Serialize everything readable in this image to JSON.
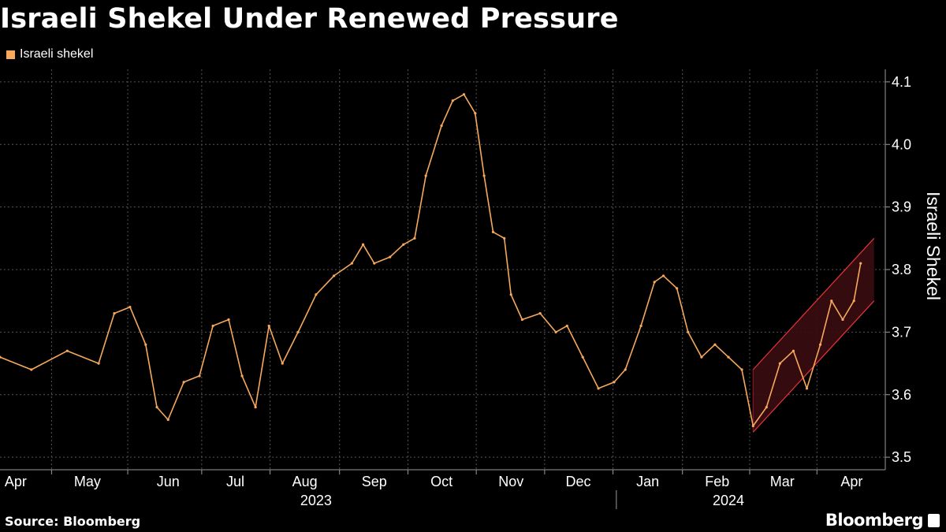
{
  "title": "Israeli Shekel Under Renewed Pressure",
  "legend": {
    "label": "Israeli shekel",
    "color": "#f6a85c"
  },
  "source": "Source: Bloomberg",
  "brand": "Bloomberg",
  "colors": {
    "series": "#f6a85c",
    "channel_line": "#e8333a",
    "channel_fill": "#3a0c0f",
    "grid": "#555555",
    "axis": "#9a9a9a",
    "background": "#000000"
  },
  "chart_data": {
    "type": "line",
    "title": "Israeli Shekel Under Renewed Pressure",
    "series": [
      {
        "name": "Israeli shekel",
        "points": [
          [
            "2023-04-01",
            3.66
          ],
          [
            "2023-04-15",
            3.64
          ],
          [
            "2023-05-01",
            3.67
          ],
          [
            "2023-05-15",
            3.65
          ],
          [
            "2023-05-22",
            3.73
          ],
          [
            "2023-05-29",
            3.74
          ],
          [
            "2023-06-05",
            3.68
          ],
          [
            "2023-06-10",
            3.58
          ],
          [
            "2023-06-15",
            3.56
          ],
          [
            "2023-06-22",
            3.62
          ],
          [
            "2023-06-29",
            3.63
          ],
          [
            "2023-07-05",
            3.71
          ],
          [
            "2023-07-12",
            3.72
          ],
          [
            "2023-07-18",
            3.63
          ],
          [
            "2023-07-24",
            3.58
          ],
          [
            "2023-07-30",
            3.71
          ],
          [
            "2023-08-05",
            3.65
          ],
          [
            "2023-08-12",
            3.7
          ],
          [
            "2023-08-20",
            3.76
          ],
          [
            "2023-08-28",
            3.79
          ],
          [
            "2023-09-05",
            3.81
          ],
          [
            "2023-09-10",
            3.84
          ],
          [
            "2023-09-15",
            3.81
          ],
          [
            "2023-09-22",
            3.82
          ],
          [
            "2023-09-28",
            3.84
          ],
          [
            "2023-10-03",
            3.85
          ],
          [
            "2023-10-08",
            3.95
          ],
          [
            "2023-10-15",
            4.03
          ],
          [
            "2023-10-20",
            4.07
          ],
          [
            "2023-10-25",
            4.08
          ],
          [
            "2023-10-30",
            4.05
          ],
          [
            "2023-11-03",
            3.95
          ],
          [
            "2023-11-07",
            3.86
          ],
          [
            "2023-11-12",
            3.85
          ],
          [
            "2023-11-15",
            3.76
          ],
          [
            "2023-11-20",
            3.72
          ],
          [
            "2023-11-28",
            3.73
          ],
          [
            "2023-12-05",
            3.7
          ],
          [
            "2023-12-10",
            3.71
          ],
          [
            "2023-12-17",
            3.66
          ],
          [
            "2023-12-24",
            3.61
          ],
          [
            "2023-12-31",
            3.62
          ],
          [
            "2024-01-05",
            3.64
          ],
          [
            "2024-01-12",
            3.71
          ],
          [
            "2024-01-18",
            3.78
          ],
          [
            "2024-01-22",
            3.79
          ],
          [
            "2024-01-28",
            3.77
          ],
          [
            "2024-02-02",
            3.7
          ],
          [
            "2024-02-08",
            3.66
          ],
          [
            "2024-02-14",
            3.68
          ],
          [
            "2024-02-20",
            3.66
          ],
          [
            "2024-02-26",
            3.64
          ],
          [
            "2024-03-02",
            3.55
          ],
          [
            "2024-03-08",
            3.58
          ],
          [
            "2024-03-14",
            3.65
          ],
          [
            "2024-03-20",
            3.67
          ],
          [
            "2024-03-26",
            3.61
          ],
          [
            "2024-04-01",
            3.68
          ],
          [
            "2024-04-06",
            3.75
          ],
          [
            "2024-04-11",
            3.72
          ],
          [
            "2024-04-16",
            3.75
          ],
          [
            "2024-04-19",
            3.81
          ]
        ]
      }
    ],
    "channel": {
      "start_date": "2024-03-02",
      "end_date": "2024-04-25",
      "lower": [
        3.54,
        3.75
      ],
      "upper": [
        3.64,
        3.85
      ]
    },
    "x_axis": {
      "month_labels": [
        "Apr",
        "May",
        "Jun",
        "Jul",
        "Aug",
        "Sep",
        "Oct",
        "Nov",
        "Dec",
        "Jan",
        "Feb",
        "Mar",
        "Apr"
      ],
      "month_dates": [
        "2023-04-08",
        "2023-05-10",
        "2023-06-15",
        "2023-07-15",
        "2023-08-15",
        "2023-09-15",
        "2023-10-15",
        "2023-11-15",
        "2023-12-15",
        "2024-01-15",
        "2024-02-15",
        "2024-03-15",
        "2024-04-15"
      ],
      "year_labels": [
        "2023",
        "2024"
      ],
      "year_dates": [
        "2023-08-20",
        "2024-02-20"
      ],
      "range": [
        "2023-04-01",
        "2024-04-30"
      ]
    },
    "y_axis": {
      "label": "Israeli Shekel",
      "ticks": [
        3.5,
        3.6,
        3.7,
        3.8,
        3.9,
        4.0,
        4.1
      ],
      "tick_labels": [
        "3.5",
        "3.6",
        "3.7",
        "3.8",
        "3.9",
        "4.0",
        "4.1"
      ],
      "range": [
        3.48,
        4.12
      ],
      "position": "right"
    },
    "grid": true,
    "legend_position": "top-left"
  }
}
